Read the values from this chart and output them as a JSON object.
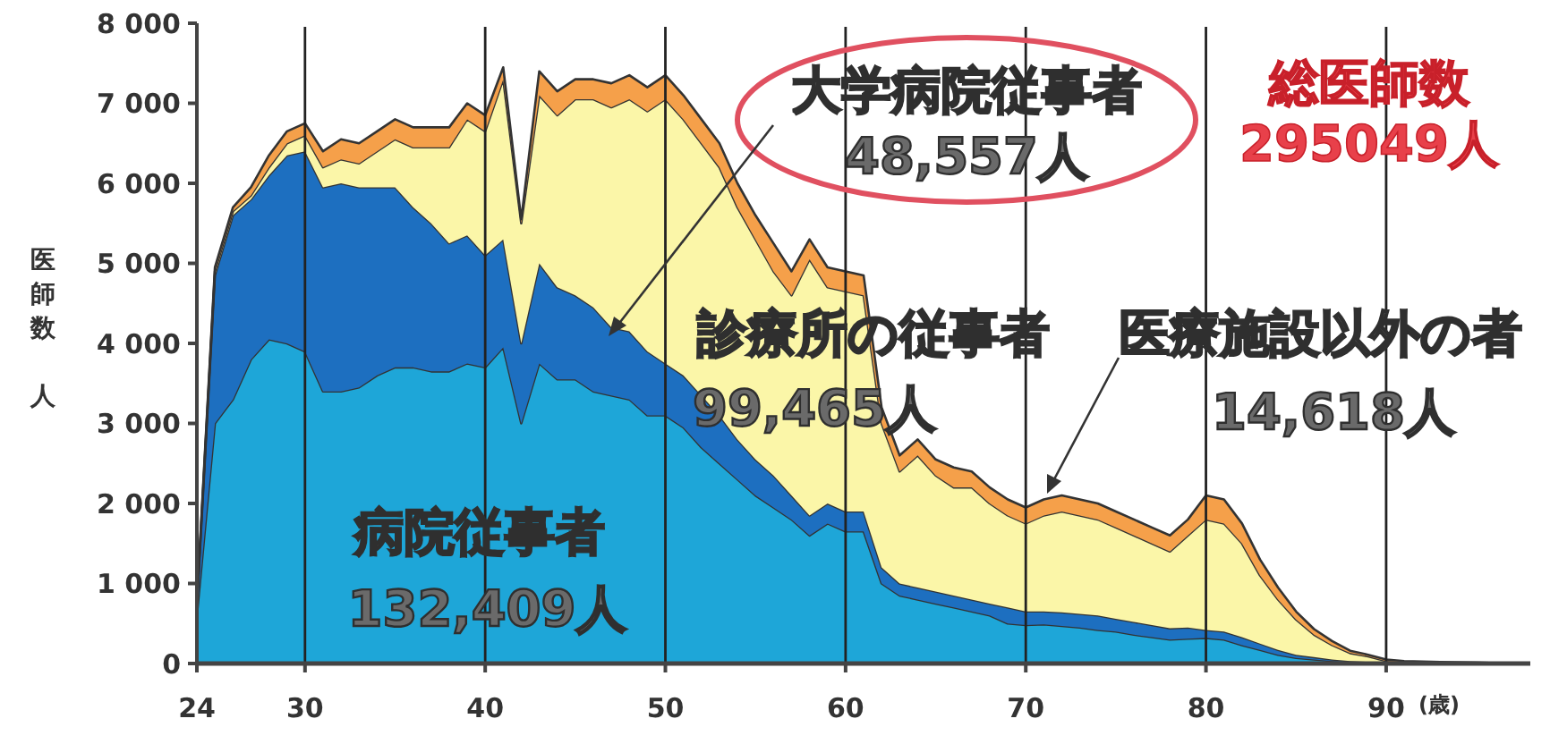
{
  "chart_data": {
    "type": "area",
    "stacked": true,
    "ylabel": "医師数人",
    "xlabel": "(歳)",
    "x": [
      24,
      25,
      26,
      27,
      28,
      29,
      30,
      31,
      32,
      33,
      34,
      35,
      36,
      37,
      38,
      39,
      40,
      41,
      42,
      43,
      44,
      45,
      46,
      47,
      48,
      49,
      50,
      51,
      52,
      53,
      54,
      55,
      56,
      57,
      58,
      59,
      60,
      61,
      62,
      63,
      64,
      65,
      66,
      67,
      68,
      69,
      70,
      71,
      72,
      73,
      74,
      75,
      76,
      77,
      78,
      79,
      80,
      81,
      82,
      83,
      84,
      85,
      86,
      87,
      88,
      89,
      90,
      91,
      93,
      95,
      98
    ],
    "series": [
      {
        "name": "病院従事者",
        "color": "#1ea6d8",
        "values": [
          600,
          3000,
          3300,
          3800,
          4050,
          4000,
          3900,
          3400,
          3400,
          3450,
          3600,
          3700,
          3700,
          3650,
          3650,
          3750,
          3700,
          3950,
          3000,
          3750,
          3550,
          3550,
          3400,
          3350,
          3300,
          3100,
          3100,
          2950,
          2700,
          2500,
          2300,
          2100,
          1950,
          1800,
          1600,
          1750,
          1650,
          1650,
          1000,
          850,
          800,
          750,
          700,
          650,
          600,
          500,
          480,
          490,
          470,
          450,
          420,
          400,
          360,
          330,
          300,
          310,
          320,
          300,
          230,
          170,
          110,
          70,
          50,
          30,
          20,
          10,
          0,
          0,
          0,
          0,
          0
        ]
      },
      {
        "name": "大学病院従事者",
        "color": "#1d6fc0",
        "values": [
          100,
          1850,
          2300,
          2000,
          2050,
          2350,
          2500,
          2550,
          2600,
          2500,
          2350,
          2250,
          2000,
          1850,
          1600,
          1600,
          1400,
          1350,
          1000,
          1250,
          1150,
          1050,
          1050,
          850,
          850,
          800,
          650,
          650,
          650,
          600,
          500,
          450,
          400,
          300,
          250,
          250,
          250,
          250,
          200,
          150,
          150,
          150,
          150,
          150,
          150,
          200,
          170,
          160,
          170,
          170,
          180,
          160,
          160,
          150,
          140,
          140,
          100,
          100,
          100,
          80,
          60,
          40,
          30,
          20,
          10,
          10,
          0,
          0,
          0,
          0,
          0
        ]
      },
      {
        "name": "診療所の従事者",
        "color": "#fbf6a8",
        "values": [
          50,
          50,
          50,
          50,
          100,
          150,
          200,
          250,
          300,
          300,
          450,
          600,
          750,
          950,
          1200,
          1450,
          1550,
          2000,
          1500,
          2100,
          2150,
          2450,
          2600,
          2750,
          2900,
          3000,
          3300,
          3200,
          3150,
          3100,
          2900,
          2750,
          2550,
          2500,
          3200,
          2700,
          2750,
          2700,
          1800,
          1400,
          1650,
          1450,
          1350,
          1400,
          1250,
          1150,
          1100,
          1200,
          1260,
          1230,
          1200,
          1140,
          1080,
          1020,
          960,
          1150,
          1380,
          1350,
          1170,
          850,
          630,
          440,
          280,
          180,
          100,
          70,
          30,
          20,
          10,
          10,
          0
        ]
      },
      {
        "name": "医療施設以外の者",
        "color": "#f5a04a",
        "values": [
          30,
          50,
          50,
          100,
          150,
          150,
          150,
          200,
          250,
          250,
          250,
          250,
          250,
          250,
          250,
          200,
          200,
          150,
          50,
          300,
          300,
          250,
          250,
          300,
          300,
          300,
          300,
          300,
          300,
          300,
          300,
          300,
          350,
          300,
          250,
          250,
          250,
          250,
          200,
          200,
          200,
          200,
          250,
          200,
          200,
          200,
          200,
          200,
          200,
          200,
          200,
          200,
          200,
          200,
          200,
          200,
          300,
          300,
          250,
          200,
          150,
          100,
          70,
          50,
          30,
          20,
          20,
          10,
          10,
          0,
          0
        ]
      }
    ],
    "xlim": [
      24,
      98
    ],
    "xticks": [
      24,
      30,
      40,
      50,
      60,
      70,
      80,
      90
    ],
    "ylim": [
      0,
      8000
    ],
    "yticks": [
      0,
      {
        "value": 1000,
        "label": "1 000"
      },
      {
        "value": 2000,
        "label": "2 000"
      },
      {
        "value": 3000,
        "label": "3 000"
      },
      {
        "value": 4000,
        "label": "4 000"
      },
      {
        "value": 5000,
        "label": "5 000"
      },
      {
        "value": 6000,
        "label": "6 000"
      },
      {
        "value": 7000,
        "label": "7 000"
      },
      {
        "value": 8000,
        "label": "8 000"
      }
    ],
    "grid": "x",
    "legend": false,
    "annotations": [
      "132,409人",
      "48,557人",
      "99,465人",
      "14,618人",
      "総医師数",
      "295049人"
    ]
  }
}
